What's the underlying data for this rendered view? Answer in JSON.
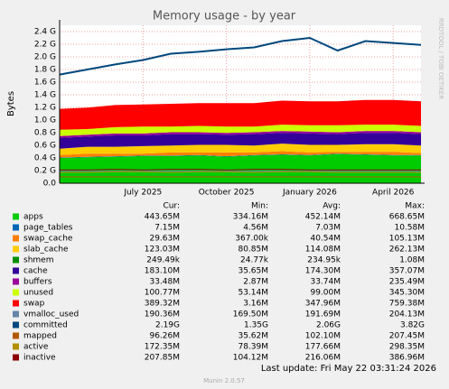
{
  "chart_data": {
    "type": "stacked_area",
    "title": "Memory usage - by year",
    "ylabel": "Bytes",
    "side_text": "RRDTOOL / TOBI OETIKER",
    "categories": [
      null,
      null,
      null,
      "July 2025",
      null,
      null,
      "October 2025",
      null,
      null,
      "January 2026",
      null,
      null,
      "April 2026",
      null
    ],
    "ylim": [
      0,
      2.5
    ],
    "yticks": [
      {
        "value": 0,
        "label": "0.0"
      },
      {
        "value": 0.2,
        "label": "0.2 G"
      },
      {
        "value": 0.4,
        "label": "0.4 G"
      },
      {
        "value": 0.6,
        "label": "0.6 G"
      },
      {
        "value": 0.8,
        "label": "0.8 G"
      },
      {
        "value": 1.0,
        "label": "1.0 G"
      },
      {
        "value": 1.2,
        "label": "1.2 G"
      },
      {
        "value": 1.4,
        "label": "1.4 G"
      },
      {
        "value": 1.6,
        "label": "1.6 G"
      },
      {
        "value": 1.8,
        "label": "1.8 G"
      },
      {
        "value": 2.0,
        "label": "2.0 G"
      },
      {
        "value": 2.2,
        "label": "2.2 G"
      },
      {
        "value": 2.4,
        "label": "2.4 G"
      }
    ],
    "grid": true,
    "stat_headers": [
      "Cur:",
      "Min:",
      "Avg:",
      "Max:"
    ],
    "series": [
      {
        "name": "apps",
        "color": "#00CC00",
        "kind": "area",
        "values": [
          0.4,
          0.41,
          0.42,
          0.43,
          0.43,
          0.44,
          0.42,
          0.44,
          0.45,
          0.44,
          0.46,
          0.45,
          0.44,
          0.44
        ],
        "stats": [
          "443.65M",
          "334.16M",
          "452.14M",
          "668.65M"
        ]
      },
      {
        "name": "page_tables",
        "color": "#0066B3",
        "kind": "area",
        "values": [
          0.007,
          0.007,
          0.007,
          0.007,
          0.007,
          0.007,
          0.007,
          0.007,
          0.007,
          0.007,
          0.007,
          0.007,
          0.007,
          0.007
        ],
        "stats": [
          "7.15M",
          "4.56M",
          "7.03M",
          "10.58M"
        ]
      },
      {
        "name": "swap_cache",
        "color": "#FF8000",
        "kind": "area",
        "values": [
          0.04,
          0.05,
          0.04,
          0.03,
          0.05,
          0.04,
          0.06,
          0.04,
          0.05,
          0.04,
          0.03,
          0.04,
          0.05,
          0.03
        ],
        "stats": [
          "29.63M",
          "367.00k",
          "40.54M",
          "105.13M"
        ]
      },
      {
        "name": "slab_cache",
        "color": "#FFCC00",
        "kind": "area",
        "values": [
          0.1,
          0.11,
          0.11,
          0.12,
          0.11,
          0.12,
          0.12,
          0.11,
          0.12,
          0.12,
          0.11,
          0.12,
          0.12,
          0.12
        ],
        "stats": [
          "123.03M",
          "80.85M",
          "114.08M",
          "262.13M"
        ]
      },
      {
        "name": "shmem",
        "color": "#008F00",
        "kind": "area",
        "values": [
          0.0002,
          0.0002,
          0.0002,
          0.0002,
          0.0002,
          0.0002,
          0.0002,
          0.0002,
          0.0002,
          0.0002,
          0.0002,
          0.0002,
          0.0002,
          0.0002
        ],
        "stats": [
          "249.49k",
          "24.77k",
          "234.95k",
          "1.08M"
        ]
      },
      {
        "name": "cache",
        "color": "#330099",
        "kind": "area",
        "values": [
          0.17,
          0.16,
          0.18,
          0.17,
          0.18,
          0.17,
          0.16,
          0.18,
          0.17,
          0.18,
          0.17,
          0.18,
          0.18,
          0.18
        ],
        "stats": [
          "183.10M",
          "35.65M",
          "174.30M",
          "357.07M"
        ]
      },
      {
        "name": "buffers",
        "color": "#990099",
        "kind": "area",
        "values": [
          0.03,
          0.03,
          0.03,
          0.03,
          0.03,
          0.03,
          0.03,
          0.03,
          0.03,
          0.03,
          0.03,
          0.03,
          0.03,
          0.03
        ],
        "stats": [
          "33.48M",
          "2.87M",
          "33.74M",
          "235.49M"
        ]
      },
      {
        "name": "unused",
        "color": "#CCFF00",
        "kind": "area",
        "values": [
          0.1,
          0.09,
          0.1,
          0.11,
          0.09,
          0.1,
          0.1,
          0.09,
          0.1,
          0.1,
          0.11,
          0.1,
          0.1,
          0.1
        ],
        "stats": [
          "100.77M",
          "53.14M",
          "99.00M",
          "345.30M"
        ]
      },
      {
        "name": "swap",
        "color": "#FF0000",
        "kind": "area",
        "values": [
          0.33,
          0.34,
          0.35,
          0.35,
          0.36,
          0.36,
          0.37,
          0.37,
          0.38,
          0.38,
          0.38,
          0.39,
          0.39,
          0.39
        ],
        "stats": [
          "389.32M",
          "3.16M",
          "347.96M",
          "759.38M"
        ]
      },
      {
        "name": "vmalloc_used",
        "color": "#6685A8",
        "kind": "line",
        "values": [
          0.19,
          0.19,
          0.19,
          0.19,
          0.19,
          0.19,
          0.19,
          0.19,
          0.19,
          0.19,
          0.19,
          0.19,
          0.19,
          0.19
        ],
        "stats": [
          "190.36M",
          "169.50M",
          "191.69M",
          "204.13M"
        ]
      },
      {
        "name": "committed",
        "color": "#00487D",
        "kind": "line",
        "values": [
          1.72,
          1.8,
          1.88,
          1.95,
          2.05,
          2.08,
          2.12,
          2.15,
          2.25,
          2.3,
          2.1,
          2.25,
          2.22,
          2.19
        ],
        "stats": [
          "2.19G",
          "1.35G",
          "2.06G",
          "3.82G"
        ]
      },
      {
        "name": "mapped",
        "color": "#B35A00",
        "kind": "line",
        "values": [
          0.1,
          0.1,
          0.1,
          0.1,
          0.1,
          0.1,
          0.1,
          0.1,
          0.1,
          0.1,
          0.1,
          0.1,
          0.1,
          0.1
        ],
        "stats": [
          "96.26M",
          "35.62M",
          "102.10M",
          "207.45M"
        ]
      },
      {
        "name": "active",
        "color": "#B38F00",
        "kind": "line",
        "values": [
          0.17,
          0.17,
          0.18,
          0.18,
          0.17,
          0.18,
          0.18,
          0.17,
          0.18,
          0.18,
          0.17,
          0.17,
          0.17,
          0.17
        ],
        "stats": [
          "172.35M",
          "78.39M",
          "177.66M",
          "298.35M"
        ]
      },
      {
        "name": "inactive",
        "color": "#8C0000",
        "kind": "line",
        "values": [
          0.21,
          0.21,
          0.22,
          0.21,
          0.22,
          0.22,
          0.21,
          0.22,
          0.22,
          0.21,
          0.21,
          0.21,
          0.21,
          0.21
        ],
        "stats": [
          "207.85M",
          "104.12M",
          "216.06M",
          "386.96M"
        ]
      }
    ],
    "last_update": "Last update: Fri May 22 03:31:24 2026",
    "footer": "Munin 2.0.57"
  }
}
